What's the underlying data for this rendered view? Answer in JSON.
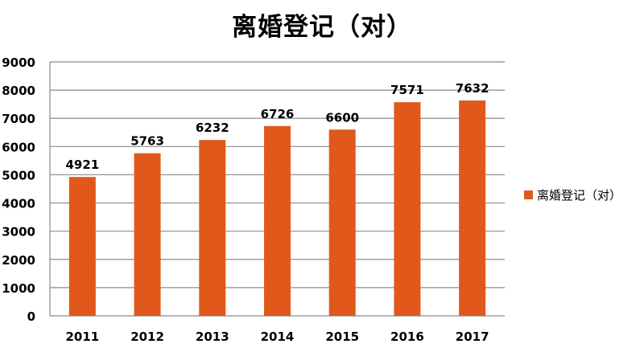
{
  "chart_data": {
    "type": "bar",
    "title": "离婚登记（对）",
    "categories": [
      "2011",
      "2012",
      "2013",
      "2014",
      "2015",
      "2016",
      "2017"
    ],
    "series": [
      {
        "name": "离婚登记（对）",
        "values": [
          4921,
          5763,
          6232,
          6726,
          6600,
          7571,
          7632
        ]
      }
    ],
    "ylim": [
      0,
      9000
    ],
    "yticks": [
      0,
      1000,
      2000,
      3000,
      4000,
      5000,
      6000,
      7000,
      8000,
      9000
    ],
    "grid": true,
    "legend_position": "right",
    "colors": {
      "bar": "#E0591B",
      "grid": "#8c8c8c",
      "text": "#000000"
    }
  }
}
